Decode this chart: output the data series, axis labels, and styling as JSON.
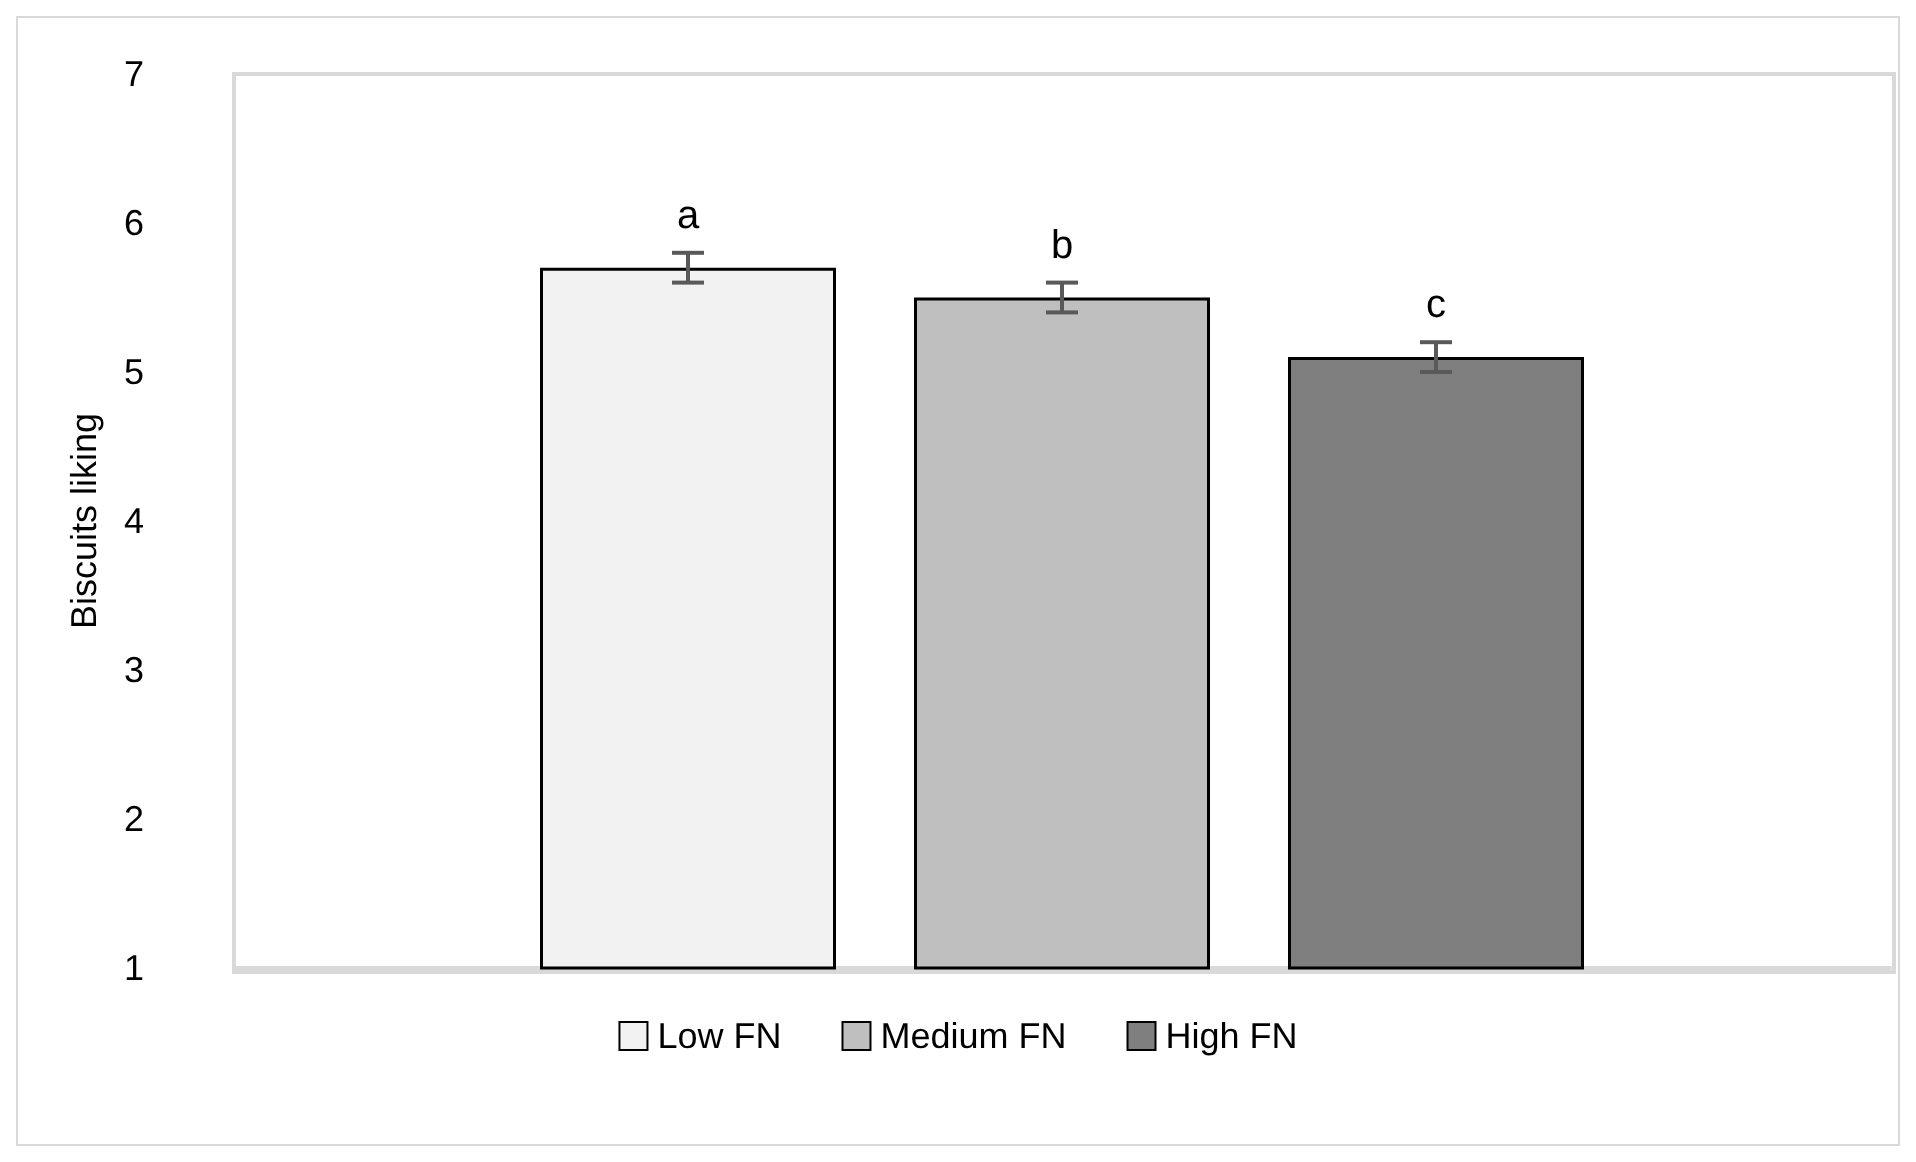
{
  "chart_data": {
    "type": "bar",
    "ylabel": "Biscuits liking",
    "categories": [
      null
    ],
    "series": [
      {
        "name": "Low FN",
        "color": "#f2f2f2",
        "values": [
          5.7
        ],
        "errors": [
          0.1
        ],
        "value_labels": [
          "a"
        ]
      },
      {
        "name": "Medium FN",
        "color": "#bfbfbf",
        "values": [
          5.5
        ],
        "errors": [
          0.1
        ],
        "value_labels": [
          "b"
        ]
      },
      {
        "name": "High FN",
        "color": "#7f7f7f",
        "values": [
          5.1
        ],
        "errors": [
          0.1
        ],
        "value_labels": [
          "c"
        ]
      }
    ],
    "ylim": [
      1,
      7
    ],
    "yticks": [
      1,
      2,
      3,
      4,
      5,
      6,
      7
    ],
    "grid": false,
    "legend": "bottom",
    "tick_labels": "y"
  }
}
